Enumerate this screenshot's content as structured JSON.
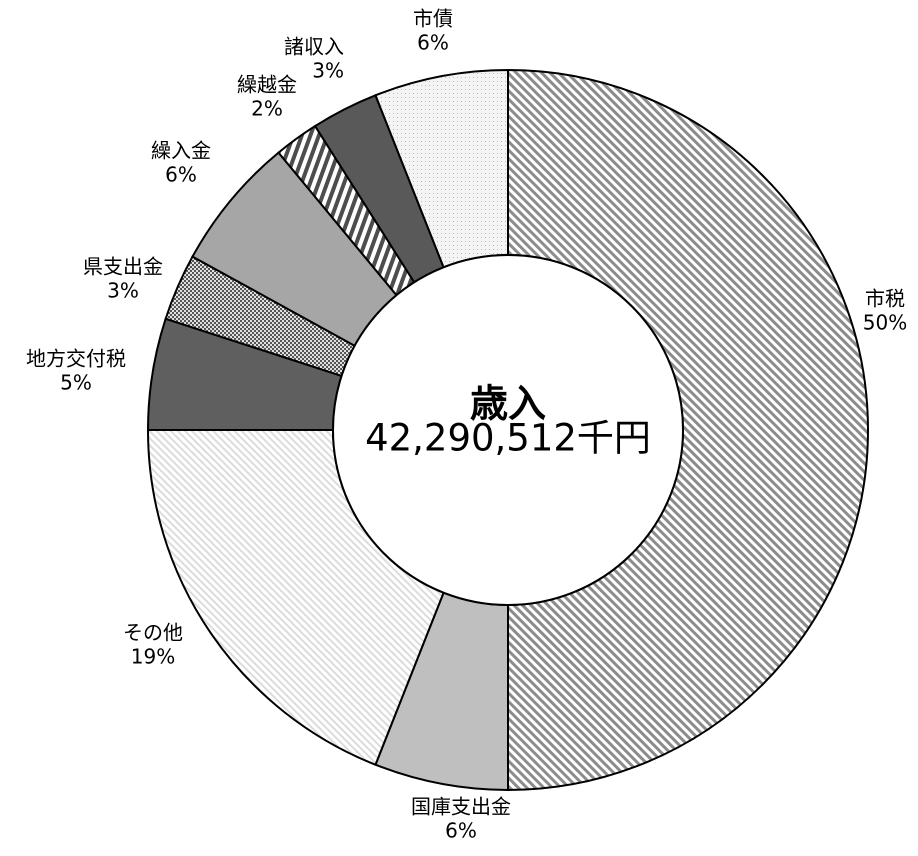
{
  "chart_data": {
    "type": "pie",
    "variant": "donut",
    "center_title": "歳入",
    "center_total": "42,290,512千円",
    "legend": "none",
    "slices": [
      {
        "name": "市税",
        "percent_label": "50%",
        "value": 50,
        "fill": "#bdbdbd",
        "pattern": "diag-wide"
      },
      {
        "name": "国庫支出金",
        "percent_label": "6%",
        "value": 6,
        "fill": "#bfbfbf",
        "pattern": "solid"
      },
      {
        "name": "その他",
        "percent_label": "19%",
        "value": 19,
        "fill": "#ececec",
        "pattern": "diag-light"
      },
      {
        "name": "地方交付税",
        "percent_label": "5%",
        "value": 5,
        "fill": "#5f5f5f",
        "pattern": "solid"
      },
      {
        "name": "県支出金",
        "percent_label": "3%",
        "value": 3,
        "fill": "#b0b0b0",
        "pattern": "check"
      },
      {
        "name": "繰入金",
        "percent_label": "6%",
        "value": 6,
        "fill": "#a6a6a6",
        "pattern": "solid"
      },
      {
        "name": "繰越金",
        "percent_label": "2%",
        "value": 2,
        "fill": "#8a8a8a",
        "pattern": "vstripe"
      },
      {
        "name": "諸収入",
        "percent_label": "3%",
        "value": 3,
        "fill": "#595959",
        "pattern": "solid"
      },
      {
        "name": "市債",
        "percent_label": "6%",
        "value": 6,
        "fill": "#eeeeee",
        "pattern": "dots"
      }
    ]
  }
}
